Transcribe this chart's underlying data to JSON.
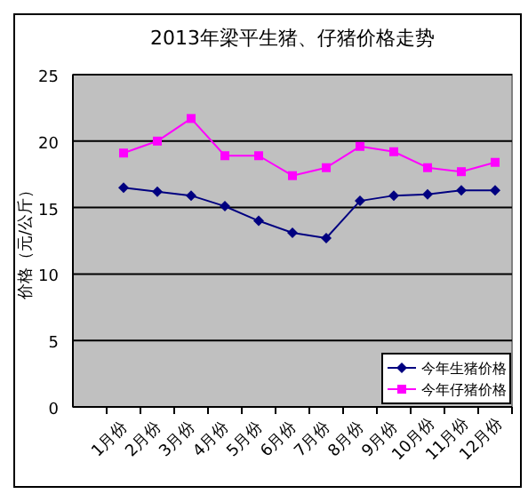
{
  "chart_data": {
    "type": "line",
    "title": "2013年梁平生猪、仔猪价格走势",
    "ylabel": "价格（元/公斤）",
    "categories": [
      "1月份",
      "2月份",
      "3月份",
      "4月份",
      "5月份",
      "6月份",
      "7月份",
      "8月份",
      "9月份",
      "10月份",
      "11月份",
      "12月份"
    ],
    "series": [
      {
        "name": "今年生猪价格",
        "color": "#000080",
        "marker": "diamond",
        "values": [
          16.5,
          16.2,
          15.9,
          15.1,
          14.0,
          13.1,
          12.7,
          15.5,
          15.9,
          16.0,
          16.3,
          16.3
        ]
      },
      {
        "name": "今年仔猪价格",
        "color": "#ff00ff",
        "marker": "square",
        "values": [
          19.1,
          20.0,
          21.7,
          18.9,
          18.9,
          17.4,
          18.0,
          19.6,
          19.2,
          18.0,
          17.7,
          18.4
        ]
      }
    ],
    "ylim": [
      0,
      25
    ],
    "yticks": [
      0,
      5,
      10,
      15,
      20,
      25
    ],
    "grid": "y",
    "legend": "bottom right"
  }
}
